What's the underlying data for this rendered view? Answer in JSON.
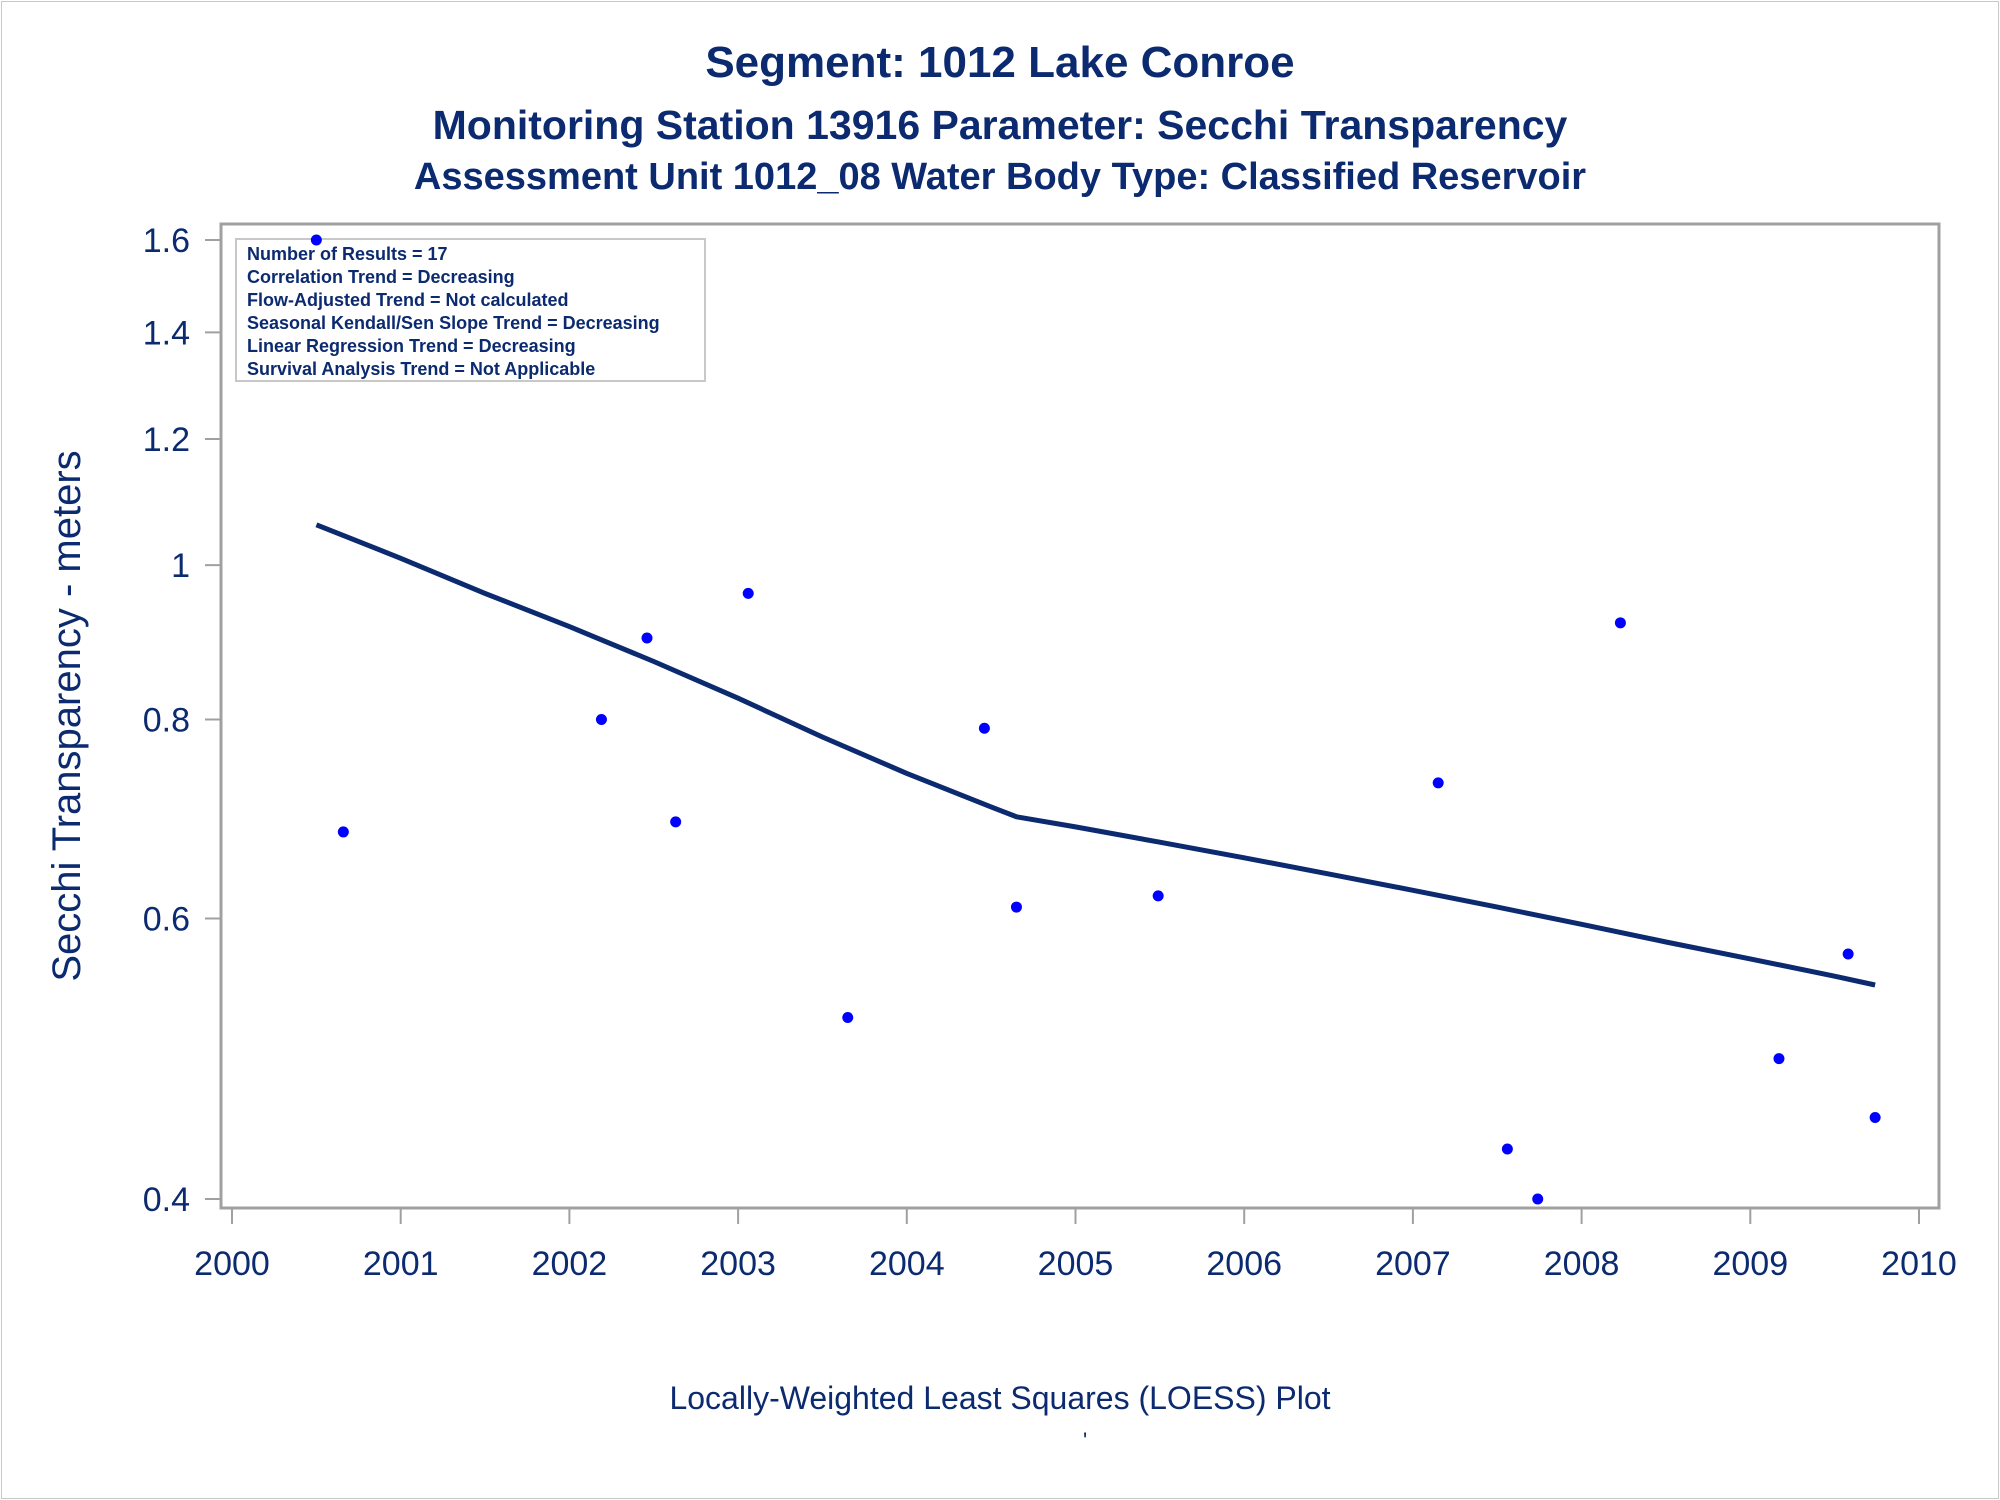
{
  "chart_data": {
    "type": "scatter",
    "title": "Segment: 1012  Lake Conroe",
    "subtitle": "Monitoring Station 13916 Parameter: Secchi Transparency",
    "subtitle2": "Assessment Unit 1012_08   Water Body Type: Classified Reservoir",
    "xlabel": "",
    "ylabel": "Secchi Transparency - meters",
    "footnote": "Locally-Weighted Least Squares (LOESS) Plot",
    "footnote_mark": "'",
    "y_scale": "log",
    "xlim": [
      2000,
      2010
    ],
    "ylim": [
      0.4,
      1.6
    ],
    "x_ticks": [
      "2000",
      "2001",
      "2002",
      "2003",
      "2004",
      "2005",
      "2006",
      "2007",
      "2008",
      "2009",
      "2010"
    ],
    "y_ticks": [
      "0.4",
      "0.6",
      "0.8",
      "1",
      "1.2",
      "1.4",
      "1.6"
    ],
    "y_tick_values": [
      0.4,
      0.6,
      0.8,
      1.0,
      1.2,
      1.4,
      1.6
    ],
    "grid": false,
    "points": {
      "x": [
        2000.5,
        2000.66,
        2002.19,
        2002.46,
        2002.63,
        2003.06,
        2003.65,
        2004.46,
        2004.65,
        2005.49,
        2007.15,
        2007.56,
        2007.74,
        2008.23,
        2009.17,
        2009.58,
        2009.74
      ],
      "y": [
        1.6,
        0.68,
        0.8,
        0.9,
        0.69,
        0.96,
        0.52,
        0.79,
        0.61,
        0.62,
        0.73,
        0.43,
        0.4,
        0.92,
        0.49,
        0.57,
        0.45
      ]
    },
    "loess": {
      "x": [
        2000.5,
        2001.0,
        2001.5,
        2002.0,
        2002.5,
        2003.0,
        2003.5,
        2004.0,
        2004.5,
        2004.65,
        2005.0,
        2005.5,
        2006.0,
        2006.5,
        2007.0,
        2007.5,
        2008.0,
        2008.5,
        2009.0,
        2009.5,
        2009.74
      ],
      "y": [
        1.06,
        1.01,
        0.96,
        0.915,
        0.87,
        0.825,
        0.78,
        0.74,
        0.705,
        0.695,
        0.685,
        0.67,
        0.655,
        0.64,
        0.625,
        0.61,
        0.595,
        0.58,
        0.566,
        0.552,
        0.545
      ]
    },
    "stats_box": [
      "Number of Results = 17",
      "Correlation Trend = Decreasing",
      "Flow-Adjusted Trend = Not calculated",
      "Seasonal Kendall/Sen Slope Trend = Decreasing",
      "Linear Regression Trend = Decreasing",
      "Survival Analysis Trend = Not Applicable"
    ],
    "colors": {
      "text": "#0b2a6f",
      "points": "#0000ff",
      "line": "#0b2a6f",
      "axis": "#a0a0a0"
    }
  }
}
